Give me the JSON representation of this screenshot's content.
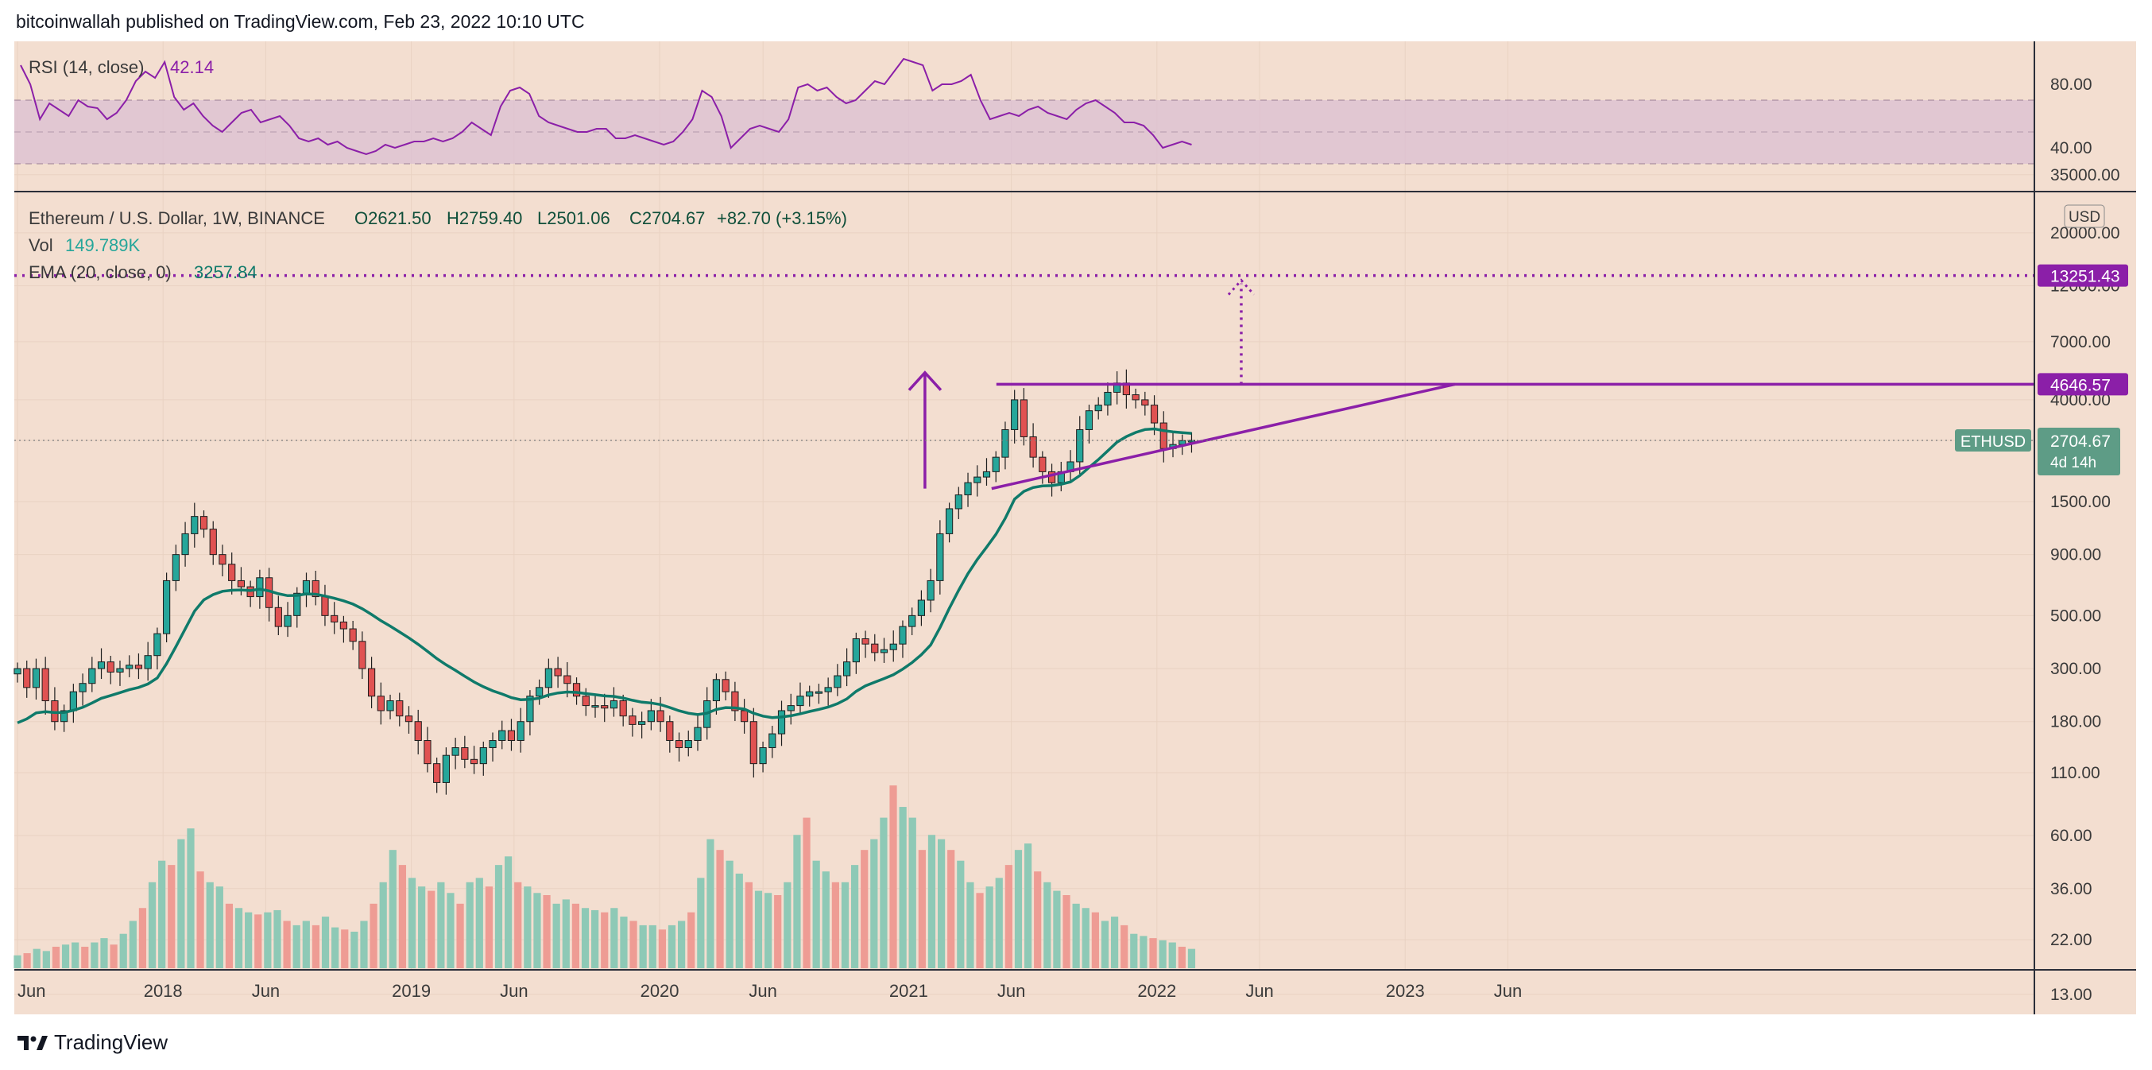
{
  "header": {
    "published": "bitcoinwallah published on TradingView.com, Feb 23, 2022 10:10 UTC"
  },
  "footer": {
    "brand": "TradingView"
  },
  "colors": {
    "bg": "#f3ded0",
    "rsi": "#8b1fa8",
    "ema": "#0f7a6a",
    "up": "#26a69a",
    "down": "#e05252",
    "accent": "#8b1fa8",
    "price_tag": "#5e9c86"
  },
  "chart_data": [
    {
      "type": "line",
      "name": "rsi-panel",
      "legend": {
        "label": "RSI (14, close)",
        "value": "42.14"
      },
      "y_ticks": [
        "80.00",
        "40.00"
      ],
      "band": [
        30,
        70
      ],
      "ylim": [
        20,
        100
      ],
      "x_start": "2017-06-01",
      "x_end": "2022-02-21",
      "values": [
        92,
        80,
        58,
        68,
        64,
        60,
        70,
        66,
        65,
        58,
        62,
        70,
        82,
        88,
        84,
        94,
        72,
        64,
        68,
        60,
        54,
        50,
        56,
        62,
        64,
        56,
        58,
        60,
        54,
        46,
        44,
        46,
        42,
        44,
        40,
        38,
        36,
        38,
        42,
        40,
        42,
        44,
        44,
        46,
        44,
        46,
        50,
        56,
        52,
        48,
        66,
        76,
        78,
        74,
        60,
        56,
        54,
        52,
        50,
        50,
        52,
        52,
        46,
        46,
        48,
        46,
        44,
        42,
        44,
        50,
        58,
        76,
        72,
        60,
        40,
        46,
        52,
        54,
        52,
        50,
        58,
        78,
        80,
        76,
        78,
        72,
        68,
        70,
        76,
        82,
        80,
        88,
        96,
        94,
        92,
        76,
        80,
        80,
        82,
        86,
        70,
        58,
        60,
        62,
        60,
        64,
        66,
        62,
        60,
        58,
        64,
        68,
        70,
        66,
        62,
        56,
        56,
        54,
        48,
        40,
        42,
        44,
        42
      ],
      "x_ticks": [
        "Jun",
        "2018",
        "Jun",
        "2019",
        "Jun",
        "2020",
        "Jun",
        "2021",
        "Jun",
        "2022",
        "Jun",
        "2023",
        "Jun"
      ]
    },
    {
      "type": "candlestick",
      "name": "price-panel",
      "title": "Ethereum / U.S. Dollar, 1W, BINANCE",
      "ohlc": {
        "o": "O2621.50",
        "h": "H2759.40",
        "l": "L2501.06",
        "c": "C2704.67",
        "chg": "+82.70 (+3.15%)"
      },
      "vol": {
        "label": "Vol",
        "value": "149.789K"
      },
      "ema": {
        "label": "EMA (20, close, 0)",
        "value": "3257.84"
      },
      "currency": "USD",
      "y_scale": "log",
      "y_ticks": [
        "35000.00",
        "20000.00",
        "12000.00",
        "7000.00",
        "4000.00",
        "2704.67",
        "1500.00",
        "900.00",
        "500.00",
        "300.00",
        "180.00",
        "110.00",
        "60.00",
        "36.00",
        "22.00",
        "13.00"
      ],
      "close_path": [
        300,
        250,
        300,
        220,
        180,
        200,
        240,
        260,
        300,
        320,
        290,
        300,
        310,
        300,
        340,
        420,
        700,
        900,
        1100,
        1300,
        1150,
        900,
        820,
        700,
        660,
        600,
        720,
        540,
        450,
        500,
        620,
        700,
        600,
        500,
        470,
        440,
        390,
        300,
        230,
        200,
        220,
        190,
        180,
        150,
        120,
        100,
        130,
        140,
        125,
        120,
        140,
        150,
        165,
        150,
        180,
        230,
        250,
        300,
        280,
        260,
        230,
        210,
        210,
        205,
        220,
        190,
        175,
        180,
        200,
        180,
        150,
        140,
        150,
        170,
        220,
        270,
        240,
        200,
        180,
        120,
        140,
        160,
        200,
        210,
        230,
        240,
        240,
        250,
        280,
        320,
        400,
        380,
        350,
        360,
        380,
        450,
        500,
        580,
        700,
        1100,
        1400,
        1600,
        1800,
        1900,
        2000,
        2300,
        3000,
        4000,
        2800,
        2300,
        2000,
        1800,
        2000,
        2200,
        3000,
        3600,
        3800,
        4300,
        4700,
        4200,
        4000,
        3800,
        3200,
        2500,
        2600,
        2700,
        2704.67
      ],
      "volume": [
        6,
        7,
        9,
        8,
        10,
        11,
        12,
        10,
        12,
        14,
        11,
        16,
        22,
        28,
        40,
        50,
        48,
        60,
        65,
        45,
        40,
        38,
        30,
        28,
        26,
        25,
        26,
        27,
        22,
        20,
        22,
        20,
        24,
        19,
        18,
        17,
        22,
        30,
        40,
        55,
        48,
        42,
        38,
        36,
        40,
        35,
        30,
        40,
        42,
        38,
        48,
        52,
        40,
        38,
        35,
        34,
        30,
        32,
        30,
        28,
        27,
        26,
        28,
        24,
        22,
        20,
        20,
        18,
        20,
        22,
        26,
        42,
        60,
        55,
        50,
        44,
        40,
        36,
        35,
        34,
        40,
        62,
        70,
        50,
        45,
        40,
        40,
        48,
        55,
        60,
        70,
        85,
        75,
        70,
        55,
        62,
        60,
        55,
        50,
        40,
        35,
        38,
        42,
        48,
        55,
        58,
        45,
        40,
        36,
        34,
        30,
        28,
        26,
        22,
        24,
        20,
        16,
        15,
        14,
        13,
        12,
        10,
        9
      ],
      "levels": [
        {
          "label": "13251.43",
          "value": 13251.43,
          "style": "dotted"
        },
        {
          "label": "4646.57",
          "value": 4646.57,
          "style": "solid"
        }
      ],
      "last_price": {
        "symbol": "ETHUSD",
        "value": "2704.67",
        "countdown": "4d 14h"
      },
      "x_ticks": [
        "Jun",
        "2018",
        "Jun",
        "2019",
        "Jun",
        "2020",
        "Jun",
        "2021",
        "Jun",
        "2022",
        "Jun",
        "2023",
        "Jun"
      ]
    }
  ]
}
